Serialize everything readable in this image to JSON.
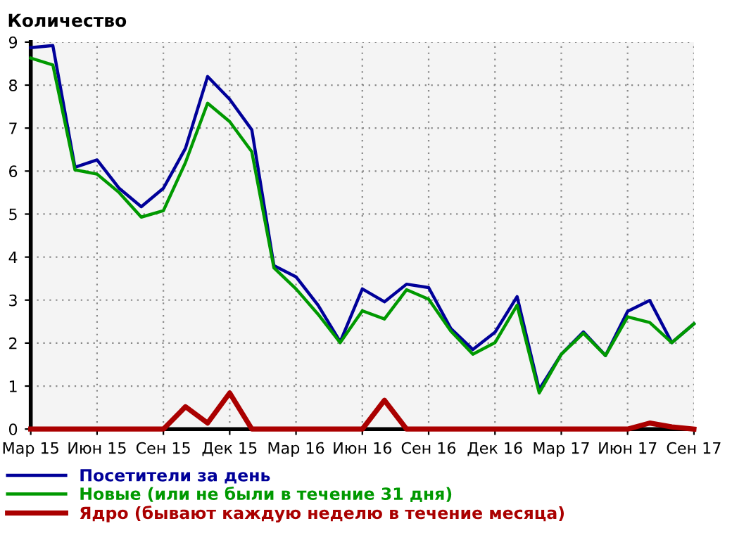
{
  "chart_data": {
    "type": "line",
    "title": "Количество",
    "categories": [
      "Мар 15",
      null,
      null,
      "Июн 15",
      null,
      null,
      "Сен 15",
      null,
      null,
      "Дек 15",
      null,
      null,
      "Мар 16",
      null,
      null,
      "Июн 16",
      null,
      null,
      "Сен 16",
      null,
      null,
      "Дек 16",
      null,
      null,
      "Мар 17",
      null,
      null,
      "Июн 17",
      null,
      null,
      "Сен 17"
    ],
    "ylim": [
      0,
      9
    ],
    "yticks": [
      0,
      1,
      2,
      3,
      4,
      5,
      6,
      7,
      8,
      9
    ],
    "grid": true,
    "legend": "bottom",
    "marker": "none",
    "line_style": "solid",
    "series": [
      {
        "name": "Посетители за день",
        "color": "#000099",
        "values": [
          8.87,
          8.92,
          6.09,
          6.26,
          5.6,
          5.17,
          5.6,
          6.53,
          8.2,
          7.67,
          6.96,
          3.8,
          3.54,
          2.88,
          2.03,
          3.26,
          2.96,
          3.37,
          3.29,
          2.34,
          1.85,
          2.25,
          3.08,
          0.92,
          1.74,
          2.26,
          1.71,
          2.74,
          2.99,
          2.01,
          2.45
        ]
      },
      {
        "name": "Новые (или не были в течение 31 дня)",
        "color": "#009900",
        "values": [
          8.63,
          8.47,
          6.03,
          5.93,
          5.5,
          4.93,
          5.08,
          6.2,
          7.58,
          7.15,
          6.45,
          3.75,
          3.26,
          2.67,
          2.01,
          2.75,
          2.56,
          3.24,
          3.02,
          2.28,
          1.74,
          2.01,
          2.88,
          0.84,
          1.74,
          2.23,
          1.71,
          2.61,
          2.48,
          2.01,
          2.45
        ]
      },
      {
        "name": "Ядро (бывают каждую неделю в течение месяца)",
        "color": "#aa0000",
        "values": [
          0,
          0,
          0,
          0,
          0,
          0,
          0,
          0.52,
          0.14,
          0.84,
          0,
          0,
          0,
          0,
          0,
          0,
          0.67,
          0,
          0,
          0,
          0,
          0,
          0,
          0,
          0,
          0,
          0,
          0,
          0.14,
          0.05,
          0
        ]
      }
    ]
  }
}
